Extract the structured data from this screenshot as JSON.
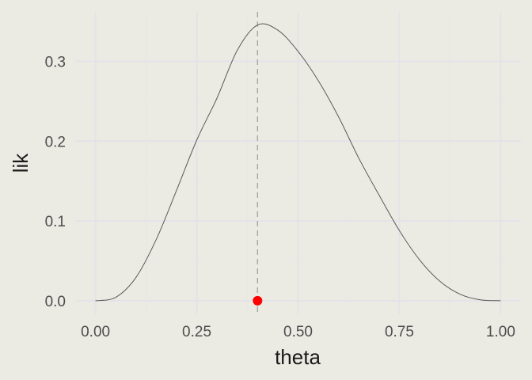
{
  "chart_data": {
    "type": "line",
    "title": "",
    "xlabel": "theta",
    "ylabel": "lik",
    "xlim": [
      -0.05,
      1.05
    ],
    "ylim": [
      -0.017,
      0.362
    ],
    "x_ticks": [
      0.0,
      0.25,
      0.5,
      0.75,
      1.0
    ],
    "x_tick_labels": [
      "0.00",
      "0.25",
      "0.50",
      "0.75",
      "1.00"
    ],
    "y_ticks": [
      0.0,
      0.1,
      0.2,
      0.3
    ],
    "y_tick_labels": [
      "0.0",
      "0.1",
      "0.2",
      "0.3"
    ],
    "grid": true,
    "series": [
      {
        "x": [
          0.0,
          0.05,
          0.1,
          0.15,
          0.2,
          0.25,
          0.3,
          0.35,
          0.4,
          0.45,
          0.5,
          0.55,
          0.6,
          0.65,
          0.7,
          0.75,
          0.8,
          0.85,
          0.9,
          0.95,
          1.0
        ],
        "y": [
          0.0,
          0.0043,
          0.0292,
          0.0768,
          0.1382,
          0.2014,
          0.2541,
          0.3139,
          0.3456,
          0.3391,
          0.3125,
          0.2757,
          0.2304,
          0.1785,
          0.1323,
          0.0879,
          0.0512,
          0.0244,
          0.0081,
          0.0011,
          0.0
        ],
        "color": "#595959"
      }
    ],
    "vline": {
      "x": 0.4,
      "style": "dashed",
      "color": "#a6a6a6"
    },
    "point": {
      "x": 0.4,
      "y": 0.0,
      "color": "#ff0000"
    }
  },
  "colors": {
    "panel_background": "#ebebe3",
    "major_grid": "#e3e3e8",
    "minor_grid": "#e8e8e6"
  }
}
